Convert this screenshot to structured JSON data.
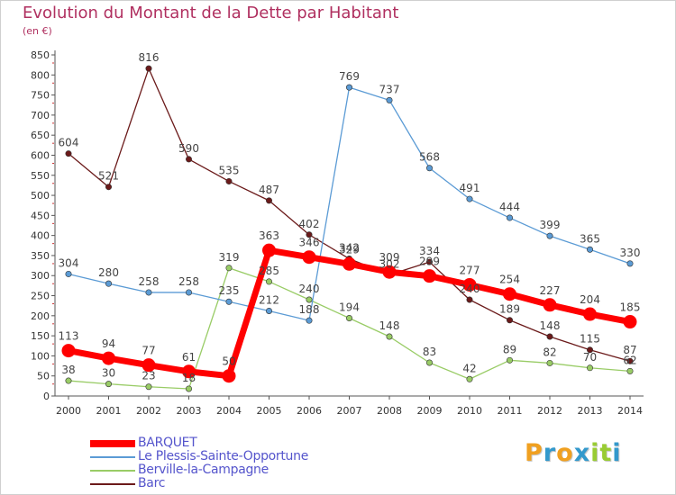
{
  "header": {
    "title": "Evolution du Montant de la Dette par Habitant",
    "subtitle": "(en €)"
  },
  "logo": {
    "text": "Proxiti",
    "letters": [
      "P",
      "r",
      "o",
      "x",
      "i",
      "t",
      "i"
    ],
    "colors": [
      "#f0a020",
      "#3399cc",
      "#f0a020",
      "#3399cc",
      "#99cc33",
      "#99cc33",
      "#3399cc"
    ]
  },
  "chart_data": {
    "type": "line",
    "title": "Evolution du Montant de la Dette par Habitant",
    "subtitle": "(en €)",
    "xlabel": "",
    "ylabel": "",
    "x": [
      "2000",
      "2001",
      "2002",
      "2003",
      "2004",
      "2005",
      "2006",
      "2007",
      "2008",
      "2009",
      "2010",
      "2011",
      "2012",
      "2013",
      "2014"
    ],
    "ylim": [
      0,
      850
    ],
    "yticks": [
      0,
      50,
      100,
      150,
      200,
      250,
      300,
      350,
      400,
      450,
      500,
      550,
      600,
      650,
      700,
      750,
      800,
      850
    ],
    "grid": false,
    "legend_position": "bottom-left",
    "series": [
      {
        "name": "Barc",
        "color": "#6b1a1a",
        "values": [
          604,
          521,
          816,
          590,
          535,
          487,
          402,
          342,
          302,
          334,
          240,
          189,
          148,
          115,
          87
        ]
      },
      {
        "name": "Berville-la-Campagne",
        "color": "#99cc66",
        "values": [
          38,
          30,
          23,
          18,
          319,
          285,
          240,
          194,
          148,
          83,
          42,
          89,
          82,
          70,
          62
        ]
      },
      {
        "name": "Le Plessis-Sainte-Opportune",
        "color": "#5b9bd5",
        "values": [
          304,
          280,
          258,
          258,
          235,
          212,
          188,
          769,
          737,
          568,
          491,
          444,
          399,
          365,
          330
        ]
      },
      {
        "name": "BARQUET",
        "color": "#ff0000",
        "values": [
          113,
          94,
          77,
          61,
          50,
          363,
          346,
          329,
          309,
          299,
          277,
          254,
          227,
          204,
          185
        ]
      }
    ]
  }
}
